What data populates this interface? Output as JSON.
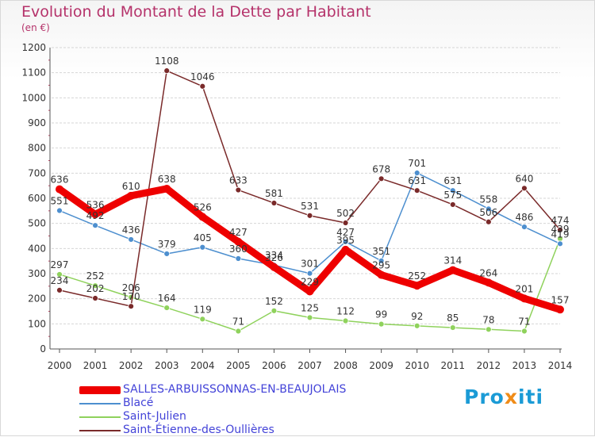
{
  "header": {
    "title": "Evolution du Montant de la Dette par Habitant",
    "unit": "(en €)"
  },
  "brand": {
    "part1": "Pro",
    "part2": "x",
    "part3": "iti"
  },
  "colors": {
    "title": "#b5326a",
    "legend_text": "#4343d8",
    "grid": "#d6d6d6",
    "axis": "#555555"
  },
  "chart_data": {
    "type": "line",
    "title": "Evolution du Montant de la Dette par Habitant",
    "ylabel": "(en €)",
    "xlabel": "",
    "x": [
      "2000",
      "2001",
      "2002",
      "2003",
      "2004",
      "2005",
      "2006",
      "2007",
      "2008",
      "2009",
      "2010",
      "2011",
      "2012",
      "2013",
      "2014"
    ],
    "ylim": [
      0,
      1200
    ],
    "yticks": [
      0,
      100,
      200,
      300,
      400,
      500,
      600,
      700,
      800,
      900,
      1000,
      1100,
      1200
    ],
    "grid": true,
    "legend_position": "bottom",
    "series": [
      {
        "name": "SALLES-ARBUISSONNAS-EN-BEAUJOLAIS",
        "color": "#ee0000",
        "values": [
          636,
          536,
          610,
          638,
          526,
          427,
          326,
          229,
          395,
          295,
          252,
          314,
          264,
          201,
          157
        ],
        "labels": [
          "636",
          "536",
          "610",
          "638",
          "526",
          "427",
          "326",
          "229",
          "395",
          "295",
          "252",
          "314",
          "264",
          "201",
          "157"
        ]
      },
      {
        "name": "Blacé",
        "color": "#4d8fcf",
        "values": [
          551,
          492,
          436,
          379,
          405,
          360,
          334,
          301,
          427,
          351,
          701,
          631,
          558,
          486,
          419
        ],
        "labels": [
          "551",
          "492",
          "436",
          "379",
          "405",
          "360",
          "334",
          "301",
          "427",
          "351",
          "701",
          "631",
          "558",
          "486",
          "419"
        ]
      },
      {
        "name": "Saint-Julien",
        "color": "#8fd25c",
        "values": [
          297,
          252,
          206,
          164,
          119,
          71,
          152,
          125,
          112,
          99,
          92,
          85,
          78,
          71,
          439
        ],
        "labels": [
          "297",
          "252",
          "206",
          "164",
          "119",
          "71",
          "152",
          "125",
          "112",
          "99",
          "92",
          "85",
          "78",
          "71",
          "439"
        ]
      },
      {
        "name": "Saint-Étienne-des-Oullières",
        "color": "#7a2a2a",
        "values": [
          234,
          202,
          170,
          1108,
          1046,
          633,
          581,
          531,
          502,
          678,
          631,
          575,
          506,
          640,
          474
        ],
        "labels": [
          "234",
          "202",
          "170",
          "1108",
          "1046",
          "633",
          "581",
          "531",
          "502",
          "678",
          "631",
          "575",
          "506",
          "640",
          "474"
        ]
      }
    ]
  }
}
